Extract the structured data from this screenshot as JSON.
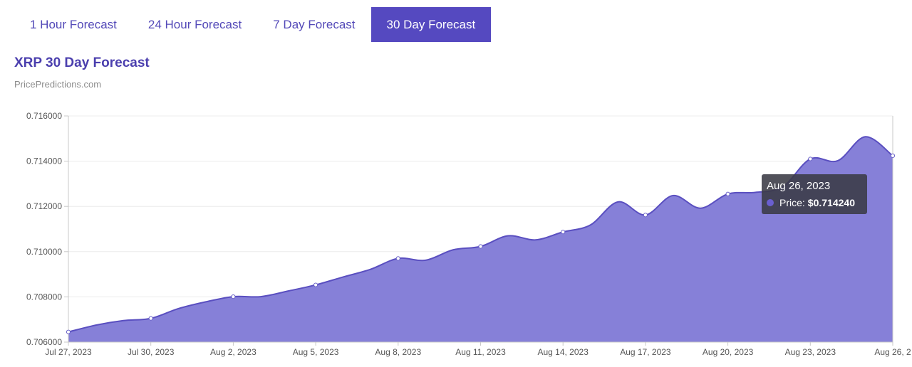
{
  "tabs": [
    {
      "label": "1 Hour Forecast",
      "active": false
    },
    {
      "label": "24 Hour Forecast",
      "active": false
    },
    {
      "label": "7 Day Forecast",
      "active": false
    },
    {
      "label": "30 Day Forecast",
      "active": true
    }
  ],
  "colors": {
    "accent": "#5549c0",
    "area_fill": "#8680d8",
    "line": "#5a4fc0"
  },
  "tooltip": {
    "date": "Aug 26, 2023",
    "label": "Price:",
    "value": "$0.714240"
  },
  "chart_data": {
    "type": "area",
    "title": "XRP 30 Day Forecast",
    "subtitle": "PricePredictions.com",
    "xlabel": "",
    "ylabel": "",
    "ylim": [
      0.706,
      0.716
    ],
    "yticks": [
      "0.716000",
      "0.714000",
      "0.712000",
      "0.710000",
      "0.708000",
      "0.706000"
    ],
    "xticks": [
      "Jul 27, 2023",
      "Jul 30, 2023",
      "Aug 2, 2023",
      "Aug 5, 2023",
      "Aug 8, 2023",
      "Aug 11, 2023",
      "Aug 14, 2023",
      "Aug 17, 2023",
      "Aug 20, 2023",
      "Aug 23, 2023",
      "Aug 26, 2"
    ],
    "grid": true,
    "x": [
      "Jul 27, 2023",
      "Jul 28, 2023",
      "Jul 29, 2023",
      "Jul 30, 2023",
      "Jul 31, 2023",
      "Aug 1, 2023",
      "Aug 2, 2023",
      "Aug 3, 2023",
      "Aug 4, 2023",
      "Aug 5, 2023",
      "Aug 6, 2023",
      "Aug 7, 2023",
      "Aug 8, 2023",
      "Aug 9, 2023",
      "Aug 10, 2023",
      "Aug 11, 2023",
      "Aug 12, 2023",
      "Aug 13, 2023",
      "Aug 14, 2023",
      "Aug 15, 2023",
      "Aug 16, 2023",
      "Aug 17, 2023",
      "Aug 18, 2023",
      "Aug 19, 2023",
      "Aug 20, 2023",
      "Aug 21, 2023",
      "Aug 22, 2023",
      "Aug 23, 2023",
      "Aug 24, 2023",
      "Aug 25, 2023",
      "Aug 26, 2023"
    ],
    "series": [
      {
        "values": [
          0.70645,
          0.70675,
          0.70695,
          0.70705,
          0.70748,
          0.70778,
          0.70801,
          0.70801,
          0.70826,
          0.70853,
          0.70888,
          0.70922,
          0.7097,
          0.70962,
          0.71008,
          0.71023,
          0.7107,
          0.71052,
          0.71087,
          0.71118,
          0.7122,
          0.71162,
          0.71248,
          0.71192,
          0.71255,
          0.71262,
          0.71287,
          0.7141,
          0.71402,
          0.71508,
          0.71424
        ]
      }
    ],
    "highlight_index": 30
  }
}
